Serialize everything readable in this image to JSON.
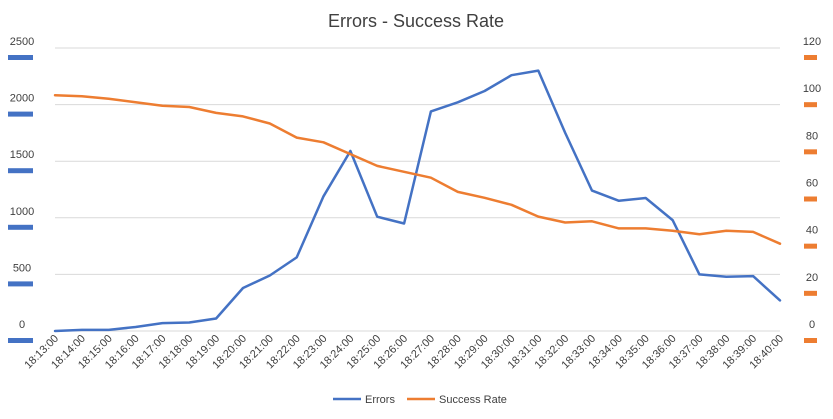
{
  "chart_data": {
    "type": "line",
    "title": "Errors - Success Rate",
    "categories": [
      "18:13:00",
      "18:14:00",
      "18:15:00",
      "18:16:00",
      "18:17:00",
      "18:18:00",
      "18:19:00",
      "18:20:00",
      "18:21:00",
      "18:22:00",
      "18:23:00",
      "18:24:00",
      "18:25:00",
      "18:26:00",
      "18:27:00",
      "18:28:00",
      "18:29:00",
      "18:30:00",
      "18:31:00",
      "18:32:00",
      "18:33:00",
      "18:34:00",
      "18:35:00",
      "18:36:00",
      "18:37:00",
      "18:38:00",
      "18:39:00",
      "18:40:00"
    ],
    "y_left": {
      "ticks": [
        "0",
        "500",
        "1000",
        "1500",
        "2000",
        "2500"
      ],
      "ylim": [
        0,
        2500
      ]
    },
    "y_right": {
      "ticks": [
        "0",
        "20",
        "40",
        "60",
        "80",
        "100",
        "120"
      ],
      "ylim": [
        0,
        120
      ]
    },
    "grid": true,
    "legend_position": "bottom",
    "series": [
      {
        "name": "Errors",
        "axis": "left",
        "color": "#4472C4",
        "values": [
          0,
          10,
          10,
          35,
          70,
          75,
          110,
          380,
          490,
          650,
          1190,
          1590,
          1010,
          950,
          1940,
          2020,
          2120,
          2260,
          2300,
          1750,
          1240,
          1150,
          1175,
          980,
          500,
          480,
          485,
          270
        ]
      },
      {
        "name": "Success Rate",
        "axis": "right",
        "color": "#ED7D31",
        "values": [
          100,
          99.5,
          98.5,
          97,
          95.5,
          95,
          92.5,
          91,
          88,
          82,
          80,
          75,
          70,
          67.5,
          65,
          59,
          56.5,
          53.5,
          48.5,
          46,
          46.5,
          43.5,
          43.5,
          42.5,
          41,
          42.5,
          42,
          37
        ]
      }
    ]
  }
}
